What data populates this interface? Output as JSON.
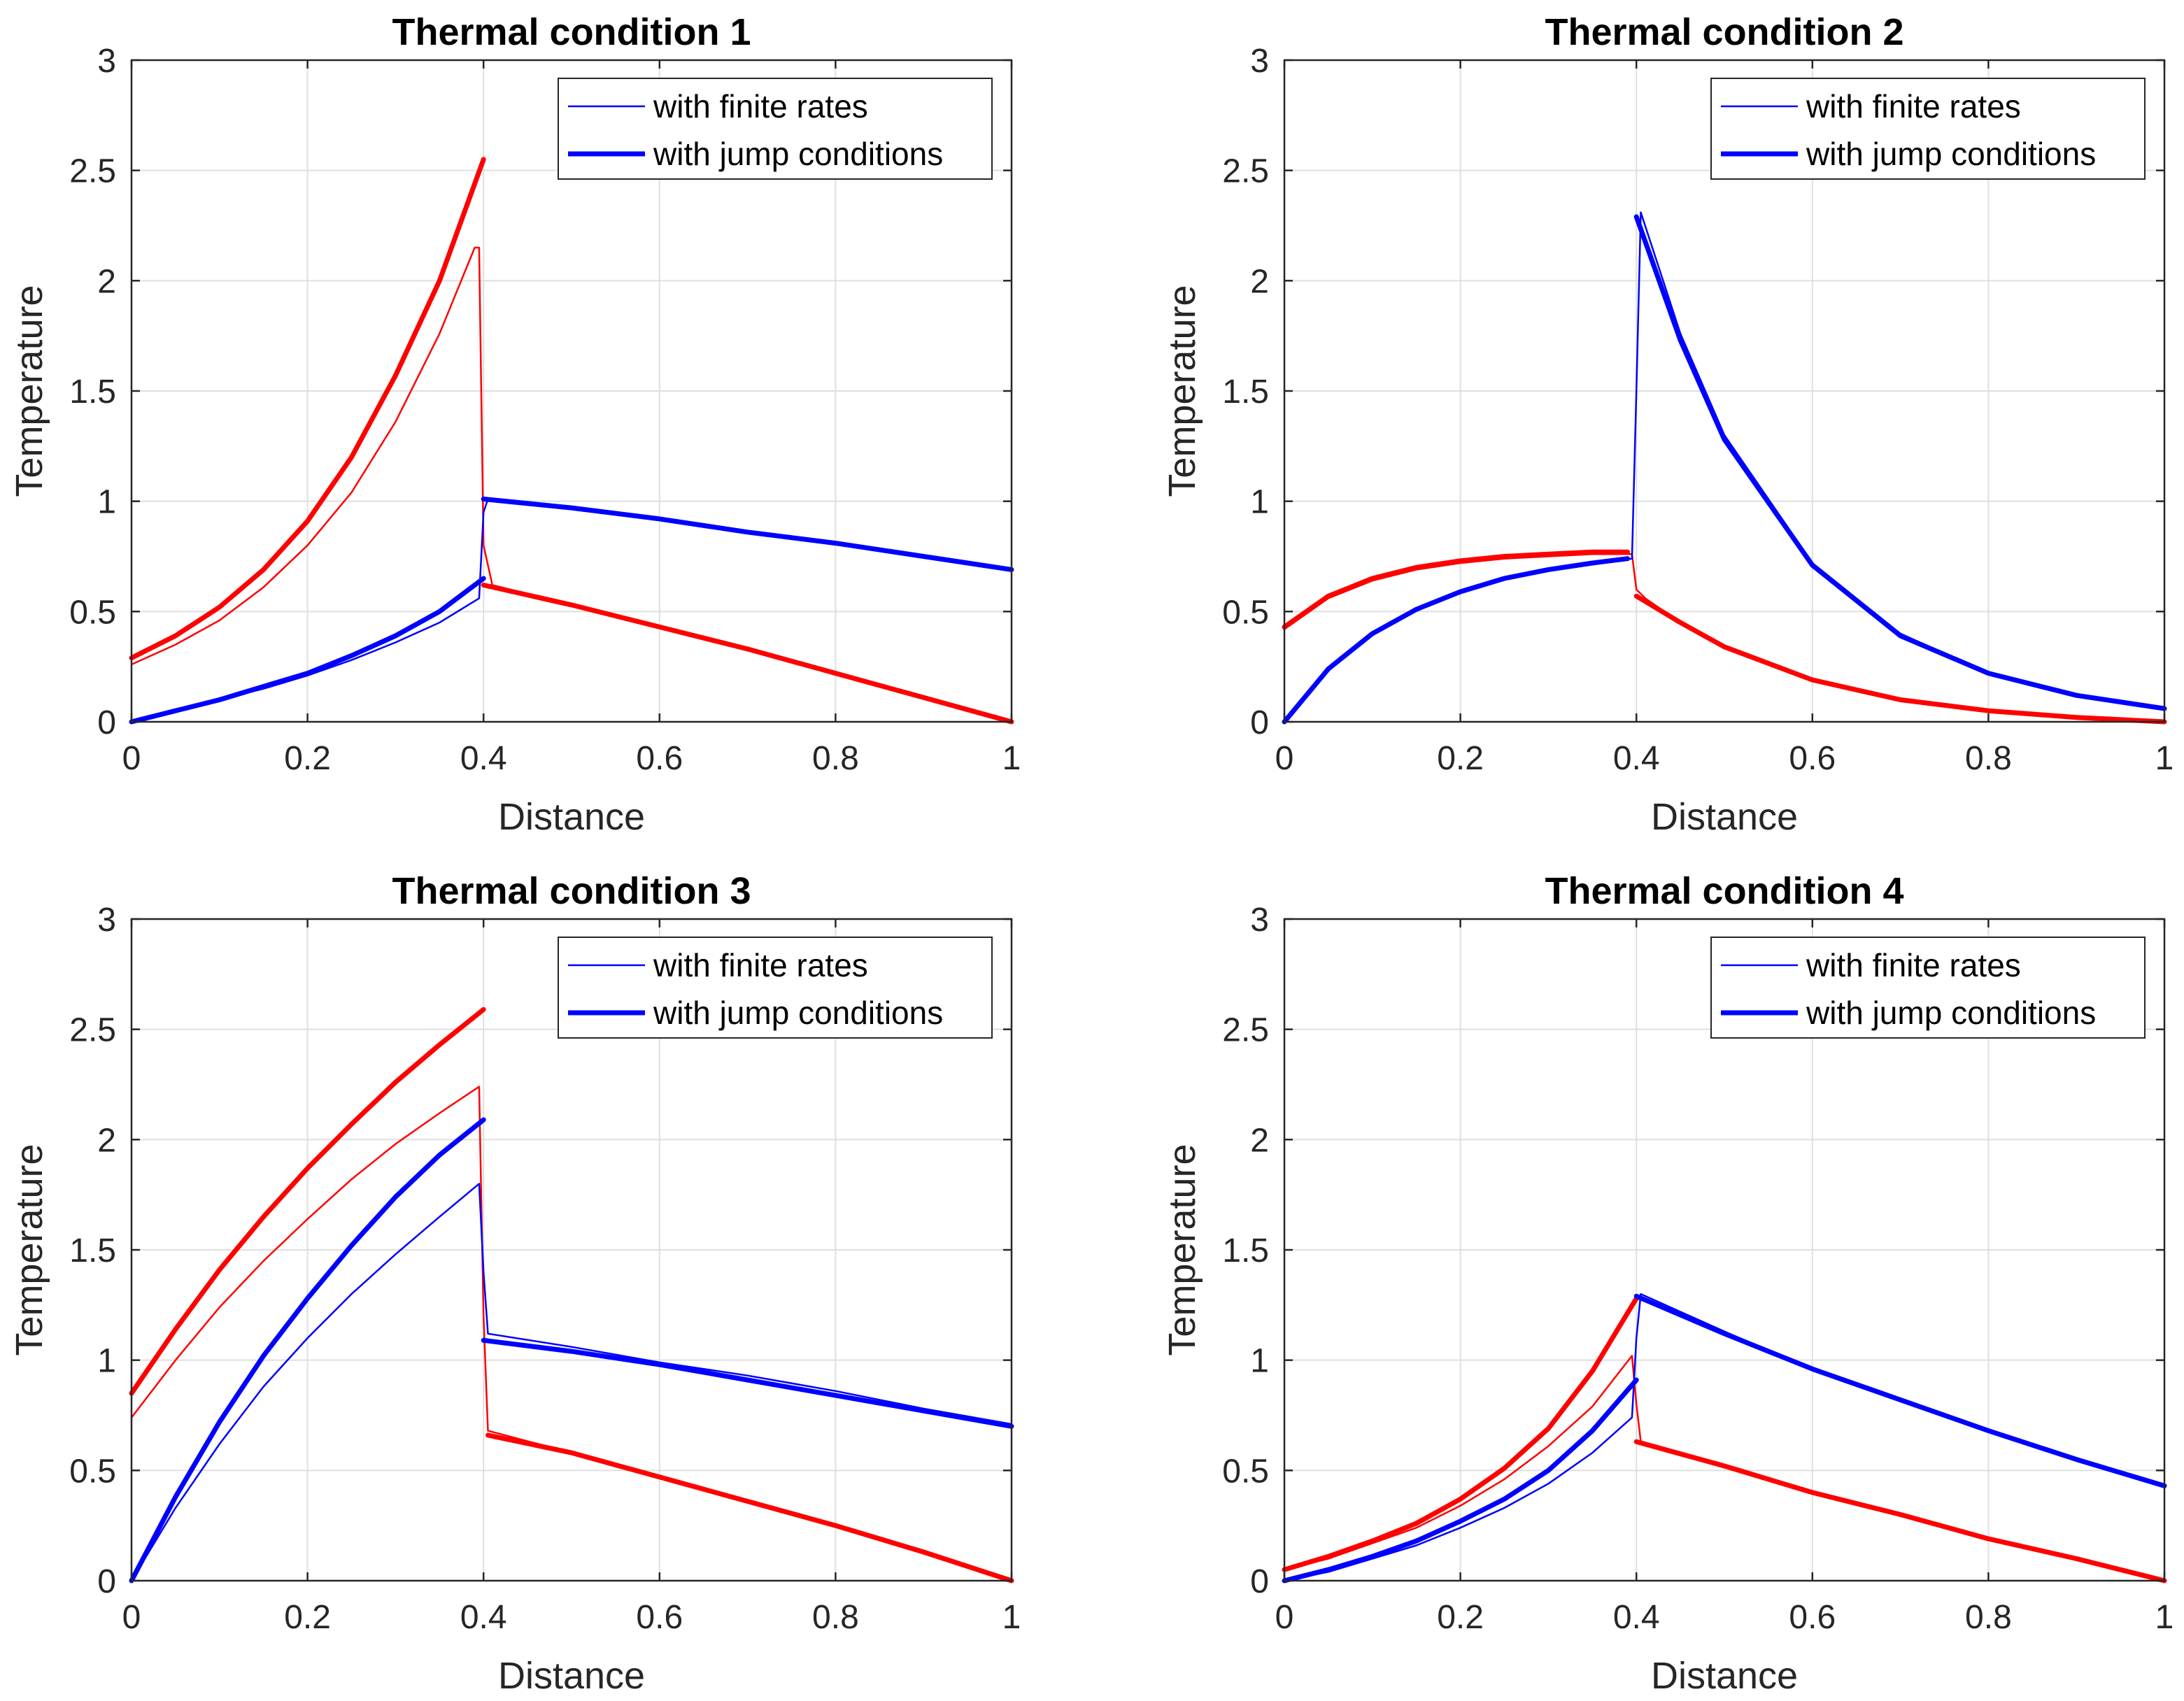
{
  "chart_data": [
    {
      "type": "line",
      "title": "Thermal condition 1",
      "xlabel": "Distance",
      "ylabel": "Temperature",
      "xlim": [
        0,
        1
      ],
      "ylim": [
        0,
        3
      ],
      "xticks": [
        0,
        0.2,
        0.4,
        0.6,
        0.8,
        1
      ],
      "yticks": [
        0,
        0.5,
        1,
        1.5,
        2,
        2.5,
        3
      ],
      "xtick_labels": [
        "0",
        "0.2",
        "0.4",
        "0.6",
        "0.8",
        "1"
      ],
      "ytick_labels": [
        "0",
        "0.5",
        "1",
        "1.5",
        "2",
        "2.5",
        "3"
      ],
      "grid": true,
      "legend": {
        "position": "top-right",
        "entries": [
          "with finite rates",
          "with jump conditions"
        ]
      },
      "series": [
        {
          "color": "#ff0000",
          "style": "thin",
          "x": [
            0,
            0.05,
            0.1,
            0.15,
            0.2,
            0.25,
            0.3,
            0.35,
            0.39,
            0.395,
            0.4,
            0.41,
            0.5,
            0.6,
            0.7,
            0.8,
            0.9,
            1
          ],
          "y": [
            0.26,
            0.35,
            0.46,
            0.61,
            0.8,
            1.04,
            1.36,
            1.76,
            2.15,
            2.15,
            0.8,
            0.62,
            0.53,
            0.43,
            0.33,
            0.22,
            0.11,
            0.0
          ]
        },
        {
          "color": "#ff0000",
          "style": "thick",
          "x": [
            0,
            0.05,
            0.1,
            0.15,
            0.2,
            0.25,
            0.3,
            0.35,
            0.4
          ],
          "y": [
            0.29,
            0.39,
            0.52,
            0.69,
            0.91,
            1.2,
            1.57,
            2.0,
            2.55
          ]
        },
        {
          "color": "#ff0000",
          "style": "thick",
          "x": [
            0.4,
            0.5,
            0.6,
            0.7,
            0.8,
            0.9,
            1
          ],
          "y": [
            0.62,
            0.53,
            0.43,
            0.33,
            0.22,
            0.11,
            0.0
          ]
        },
        {
          "color": "#0000ff",
          "style": "thin",
          "x": [
            0,
            0.05,
            0.1,
            0.15,
            0.2,
            0.25,
            0.3,
            0.35,
            0.395,
            0.4,
            0.405,
            0.5,
            0.6,
            0.7,
            0.8,
            0.9,
            1
          ],
          "y": [
            0.0,
            0.05,
            0.1,
            0.15,
            0.21,
            0.28,
            0.36,
            0.45,
            0.56,
            0.95,
            1.01,
            0.97,
            0.92,
            0.86,
            0.81,
            0.75,
            0.69
          ]
        },
        {
          "color": "#0000ff",
          "style": "thick",
          "x": [
            0,
            0.05,
            0.1,
            0.15,
            0.2,
            0.25,
            0.3,
            0.35,
            0.4
          ],
          "y": [
            0.0,
            0.05,
            0.1,
            0.16,
            0.22,
            0.3,
            0.39,
            0.5,
            0.65
          ]
        },
        {
          "color": "#0000ff",
          "style": "thick",
          "x": [
            0.4,
            0.5,
            0.6,
            0.7,
            0.8,
            0.9,
            1
          ],
          "y": [
            1.01,
            0.97,
            0.92,
            0.86,
            0.81,
            0.75,
            0.69
          ]
        }
      ]
    },
    {
      "type": "line",
      "title": "Thermal condition 2",
      "xlabel": "Distance",
      "ylabel": "Temperature",
      "xlim": [
        0,
        1
      ],
      "ylim": [
        0,
        3
      ],
      "xticks": [
        0,
        0.2,
        0.4,
        0.6,
        0.8,
        1
      ],
      "yticks": [
        0,
        0.5,
        1,
        1.5,
        2,
        2.5,
        3
      ],
      "xtick_labels": [
        "0",
        "0.2",
        "0.4",
        "0.6",
        "0.8",
        "1"
      ],
      "ytick_labels": [
        "0",
        "0.5",
        "1",
        "1.5",
        "2",
        "2.5",
        "3"
      ],
      "grid": true,
      "legend": {
        "position": "top-right",
        "entries": [
          "with finite rates",
          "with jump conditions"
        ]
      },
      "series": [
        {
          "color": "#ff0000",
          "style": "thin",
          "x": [
            0,
            0.05,
            0.1,
            0.15,
            0.2,
            0.25,
            0.3,
            0.35,
            0.395,
            0.4,
            0.41,
            0.45,
            0.5,
            0.6,
            0.7,
            0.8,
            0.9,
            1
          ],
          "y": [
            0.42,
            0.56,
            0.64,
            0.69,
            0.72,
            0.74,
            0.75,
            0.76,
            0.76,
            0.6,
            0.56,
            0.45,
            0.34,
            0.19,
            0.1,
            0.05,
            0.02,
            0.0
          ]
        },
        {
          "color": "#ff0000",
          "style": "thick",
          "x": [
            0,
            0.05,
            0.1,
            0.15,
            0.2,
            0.25,
            0.3,
            0.35,
            0.39
          ],
          "y": [
            0.43,
            0.57,
            0.65,
            0.7,
            0.73,
            0.75,
            0.76,
            0.77,
            0.77
          ]
        },
        {
          "color": "#ff0000",
          "style": "thick",
          "x": [
            0.4,
            0.45,
            0.5,
            0.6,
            0.7,
            0.8,
            0.9,
            1
          ],
          "y": [
            0.57,
            0.45,
            0.34,
            0.19,
            0.1,
            0.05,
            0.02,
            0.0
          ]
        },
        {
          "color": "#0000ff",
          "style": "thin",
          "x": [
            0,
            0.05,
            0.1,
            0.15,
            0.2,
            0.25,
            0.3,
            0.35,
            0.395,
            0.4,
            0.405,
            0.45,
            0.5,
            0.6,
            0.7,
            0.8,
            0.9,
            1
          ],
          "y": [
            0.0,
            0.24,
            0.4,
            0.51,
            0.59,
            0.65,
            0.69,
            0.72,
            0.74,
            1.5,
            2.31,
            1.76,
            1.3,
            0.72,
            0.4,
            0.22,
            0.12,
            0.06
          ]
        },
        {
          "color": "#0000ff",
          "style": "thick",
          "x": [
            0,
            0.05,
            0.1,
            0.15,
            0.2,
            0.25,
            0.3,
            0.35,
            0.39
          ],
          "y": [
            0.0,
            0.24,
            0.4,
            0.51,
            0.59,
            0.65,
            0.69,
            0.72,
            0.74
          ]
        },
        {
          "color": "#0000ff",
          "style": "thick",
          "x": [
            0.4,
            0.45,
            0.5,
            0.6,
            0.7,
            0.8,
            0.9,
            1
          ],
          "y": [
            2.29,
            1.73,
            1.28,
            0.71,
            0.39,
            0.22,
            0.12,
            0.06
          ]
        }
      ]
    },
    {
      "type": "line",
      "title": "Thermal condition 3",
      "xlabel": "Distance",
      "ylabel": "Temperature",
      "xlim": [
        0,
        1
      ],
      "ylim": [
        0,
        3
      ],
      "xticks": [
        0,
        0.2,
        0.4,
        0.6,
        0.8,
        1
      ],
      "yticks": [
        0,
        0.5,
        1,
        1.5,
        2,
        2.5,
        3
      ],
      "xtick_labels": [
        "0",
        "0.2",
        "0.4",
        "0.6",
        "0.8",
        "1"
      ],
      "ytick_labels": [
        "0",
        "0.5",
        "1",
        "1.5",
        "2",
        "2.5",
        "3"
      ],
      "grid": true,
      "legend": {
        "position": "top-right",
        "entries": [
          "with finite rates",
          "with jump conditions"
        ]
      },
      "series": [
        {
          "color": "#ff0000",
          "style": "thin",
          "x": [
            0,
            0.05,
            0.1,
            0.15,
            0.2,
            0.25,
            0.3,
            0.35,
            0.395,
            0.4,
            0.405,
            0.5,
            0.6,
            0.7,
            0.8,
            0.9,
            1
          ],
          "y": [
            0.74,
            1.0,
            1.24,
            1.45,
            1.64,
            1.82,
            1.98,
            2.12,
            2.24,
            1.2,
            0.68,
            0.58,
            0.47,
            0.36,
            0.25,
            0.13,
            0.0
          ]
        },
        {
          "color": "#ff0000",
          "style": "thick",
          "x": [
            0,
            0.05,
            0.1,
            0.15,
            0.2,
            0.25,
            0.3,
            0.35,
            0.4
          ],
          "y": [
            0.85,
            1.14,
            1.41,
            1.65,
            1.87,
            2.07,
            2.26,
            2.43,
            2.59
          ]
        },
        {
          "color": "#ff0000",
          "style": "thick",
          "x": [
            0.405,
            0.5,
            0.6,
            0.7,
            0.8,
            0.9,
            1
          ],
          "y": [
            0.66,
            0.58,
            0.47,
            0.36,
            0.25,
            0.13,
            0.0
          ]
        },
        {
          "color": "#0000ff",
          "style": "thin",
          "x": [
            0,
            0.05,
            0.1,
            0.15,
            0.2,
            0.25,
            0.3,
            0.35,
            0.395,
            0.4,
            0.405,
            0.5,
            0.6,
            0.7,
            0.8,
            0.9,
            1
          ],
          "y": [
            0.0,
            0.33,
            0.62,
            0.88,
            1.1,
            1.3,
            1.48,
            1.65,
            1.8,
            1.4,
            1.12,
            1.06,
            0.99,
            0.93,
            0.86,
            0.78,
            0.71
          ]
        },
        {
          "color": "#0000ff",
          "style": "thick",
          "x": [
            0,
            0.05,
            0.1,
            0.15,
            0.2,
            0.25,
            0.3,
            0.35,
            0.4
          ],
          "y": [
            0.0,
            0.38,
            0.72,
            1.02,
            1.28,
            1.52,
            1.74,
            1.93,
            2.09
          ]
        },
        {
          "color": "#0000ff",
          "style": "thick",
          "x": [
            0.4,
            0.5,
            0.6,
            0.7,
            0.8,
            0.9,
            1
          ],
          "y": [
            1.09,
            1.04,
            0.98,
            0.91,
            0.84,
            0.77,
            0.7
          ]
        }
      ]
    },
    {
      "type": "line",
      "title": "Thermal condition 4",
      "xlabel": "Distance",
      "ylabel": "Temperature",
      "xlim": [
        0,
        1
      ],
      "ylim": [
        0,
        3
      ],
      "xticks": [
        0,
        0.2,
        0.4,
        0.6,
        0.8,
        1
      ],
      "yticks": [
        0,
        0.5,
        1,
        1.5,
        2,
        2.5,
        3
      ],
      "xtick_labels": [
        "0",
        "0.2",
        "0.4",
        "0.6",
        "0.8",
        "1"
      ],
      "ytick_labels": [
        "0",
        "0.5",
        "1",
        "1.5",
        "2",
        "2.5",
        "3"
      ],
      "grid": true,
      "legend": {
        "position": "top-right",
        "entries": [
          "with finite rates",
          "with jump conditions"
        ]
      },
      "series": [
        {
          "color": "#ff0000",
          "style": "thin",
          "x": [
            0,
            0.05,
            0.1,
            0.15,
            0.2,
            0.25,
            0.3,
            0.35,
            0.395,
            0.4,
            0.405,
            0.5,
            0.6,
            0.7,
            0.8,
            0.9,
            1
          ],
          "y": [
            0.05,
            0.1,
            0.17,
            0.24,
            0.34,
            0.46,
            0.61,
            0.79,
            1.02,
            0.8,
            0.63,
            0.52,
            0.4,
            0.3,
            0.19,
            0.1,
            0.0
          ]
        },
        {
          "color": "#ff0000",
          "style": "thick",
          "x": [
            0,
            0.05,
            0.1,
            0.15,
            0.2,
            0.25,
            0.3,
            0.35,
            0.4
          ],
          "y": [
            0.05,
            0.11,
            0.18,
            0.26,
            0.37,
            0.51,
            0.69,
            0.95,
            1.28
          ]
        },
        {
          "color": "#ff0000",
          "style": "thick",
          "x": [
            0.4,
            0.5,
            0.6,
            0.7,
            0.8,
            0.9,
            1
          ],
          "y": [
            0.63,
            0.52,
            0.4,
            0.3,
            0.19,
            0.1,
            0.0
          ]
        },
        {
          "color": "#0000ff",
          "style": "thin",
          "x": [
            0,
            0.05,
            0.1,
            0.15,
            0.2,
            0.25,
            0.3,
            0.35,
            0.395,
            0.4,
            0.405,
            0.5,
            0.6,
            0.7,
            0.8,
            0.9,
            1
          ],
          "y": [
            0.0,
            0.04,
            0.1,
            0.16,
            0.24,
            0.33,
            0.44,
            0.58,
            0.74,
            1.1,
            1.3,
            1.13,
            0.96,
            0.82,
            0.68,
            0.55,
            0.43
          ]
        },
        {
          "color": "#0000ff",
          "style": "thick",
          "x": [
            0,
            0.05,
            0.1,
            0.15,
            0.2,
            0.25,
            0.3,
            0.35,
            0.4
          ],
          "y": [
            0.0,
            0.05,
            0.11,
            0.18,
            0.27,
            0.37,
            0.5,
            0.68,
            0.91
          ]
        },
        {
          "color": "#0000ff",
          "style": "thick",
          "x": [
            0.4,
            0.5,
            0.6,
            0.7,
            0.8,
            0.9,
            1
          ],
          "y": [
            1.29,
            1.12,
            0.96,
            0.82,
            0.68,
            0.55,
            0.43
          ]
        }
      ]
    }
  ]
}
